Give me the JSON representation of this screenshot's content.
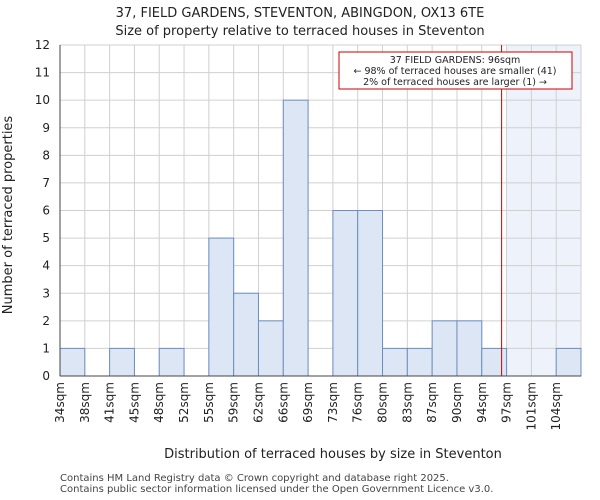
{
  "chart_data": {
    "type": "bar",
    "title_line1": "37, FIELD GARDENS, STEVENTON, ABINGDON, OX13 6TE",
    "title_line2": "Size of property relative to terraced houses in Steventon",
    "xlabel": "Distribution of terraced houses by size in Steventon",
    "ylabel": "Number of terraced properties",
    "categories": [
      "34sqm",
      "38sqm",
      "41sqm",
      "45sqm",
      "48sqm",
      "52sqm",
      "55sqm",
      "59sqm",
      "62sqm",
      "66sqm",
      "69sqm",
      "73sqm",
      "76sqm",
      "80sqm",
      "83sqm",
      "87sqm",
      "90sqm",
      "94sqm",
      "97sqm",
      "101sqm",
      "104sqm"
    ],
    "values": [
      1,
      0,
      1,
      0,
      1,
      0,
      5,
      3,
      2,
      10,
      0,
      6,
      6,
      1,
      1,
      2,
      2,
      1,
      0,
      0,
      1
    ],
    "ylim": [
      0,
      12
    ],
    "yticks": [
      0,
      1,
      2,
      3,
      4,
      5,
      6,
      7,
      8,
      9,
      10,
      11,
      12
    ],
    "marker_position": 17.8,
    "highlight_from_index": 18,
    "annotation": {
      "line1": "37 FIELD GARDENS: 96sqm",
      "line2": "← 98% of terraced houses are smaller (41)",
      "line3": "2% of terraced houses are larger (1) →"
    },
    "colors": {
      "bar_fill": "#dce6f5",
      "bar_stroke": "#6c8ebf",
      "marker": "#cc0000",
      "highlight_bg": "#eef2fa",
      "grid": "#d0d0d0"
    }
  },
  "footer": {
    "line1": "Contains HM Land Registry data © Crown copyright and database right 2025.",
    "line2": "Contains public sector information licensed under the Open Government Licence v3.0."
  }
}
